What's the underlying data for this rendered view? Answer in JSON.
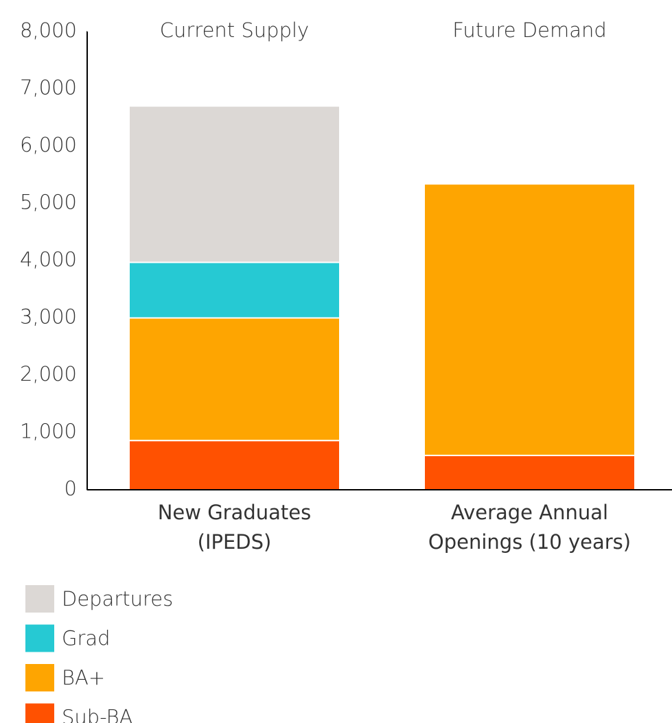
{
  "chart_data": {
    "type": "stacked_bar",
    "categories": [
      "New Graduates (IPEDS)",
      "Average Annual Openings (10 years)"
    ],
    "annotations": [
      "Current Supply",
      "Future Demand"
    ],
    "series": [
      {
        "name": "Sub-BA",
        "color": "#ff5101",
        "values": [
          860,
          600
        ]
      },
      {
        "name": "BA+",
        "color": "#fea501",
        "values": [
          2140,
          4740
        ]
      },
      {
        "name": "Grad",
        "color": "#26c9d3",
        "values": [
          970,
          0
        ]
      },
      {
        "name": "Departures",
        "color": "#dcd8d5",
        "values": [
          2730,
          0
        ]
      }
    ],
    "ylim": [
      0,
      8000
    ],
    "yticks": [
      0,
      {
        "value": 1000,
        "label": "1,000"
      },
      {
        "value": 2000,
        "label": "2,000"
      },
      {
        "value": 3000,
        "label": "3,000"
      },
      {
        "value": 4000,
        "label": "4,000"
      },
      {
        "value": 5000,
        "label": "5,000"
      },
      {
        "value": 6000,
        "label": "6,000"
      },
      {
        "value": 7000,
        "label": "7,000"
      },
      {
        "value": 8000,
        "label": "8,000"
      }
    ],
    "grid": false
  }
}
